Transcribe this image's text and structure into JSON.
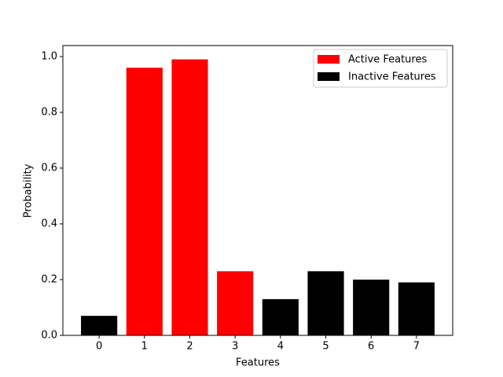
{
  "chart_data": {
    "type": "bar",
    "xlabel": "Features",
    "ylabel": "Probability",
    "series": [
      {
        "name": "Active Features",
        "color": "#ff0000",
        "x": [
          1,
          2,
          3
        ],
        "values": [
          0.96,
          0.99,
          0.23
        ]
      },
      {
        "name": "Inactive Features",
        "color": "#000000",
        "x": [
          0,
          4,
          5,
          6,
          7
        ],
        "values": [
          0.07,
          0.13,
          0.23,
          0.2,
          0.19
        ]
      }
    ],
    "xlim": [
      -0.8,
      7.8
    ],
    "xticks": [
      0,
      1,
      2,
      3,
      4,
      5,
      6,
      7
    ],
    "ylim": [
      0,
      1.0395
    ],
    "yticks": [
      {
        "value": 0,
        "label": "0.0"
      },
      0.2,
      0.4,
      0.6,
      0.8,
      {
        "value": 1,
        "label": "1.0"
      }
    ],
    "legend": "upper right"
  }
}
